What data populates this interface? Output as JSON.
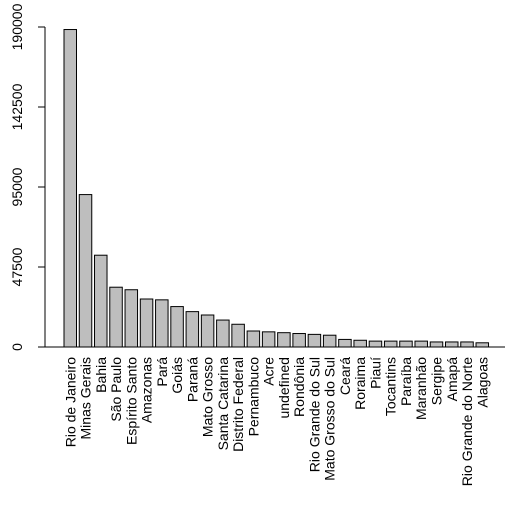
{
  "chart_data": {
    "type": "bar",
    "title": "",
    "xlabel": "",
    "ylabel": "",
    "ylim": [
      0,
      190000
    ],
    "yticks": [
      0,
      47500,
      95000,
      142500,
      190000
    ],
    "ytick_labels": [
      "0",
      "47500",
      "95000",
      "142500",
      "190000"
    ],
    "grid": false,
    "bar_color": "#bebebe",
    "edge_color": "#000000",
    "categories": [
      "Rio de Janeiro",
      "Minas Gerais",
      "Bahia",
      "São Paulo",
      "Espírito Santo",
      "Amazonas",
      "Pará",
      "Goiás",
      "Paraná",
      "Mato Grosso",
      "Santa Catarina",
      "Distrito Federal",
      "Pernambuco",
      "Acre",
      "undefined",
      "Rondônia",
      "Rio Grande do Sul",
      "Mato Grosso do Sul",
      "Ceará",
      "Roraima",
      "Piauí",
      "Tocantins",
      "Paraíba",
      "Maranhão",
      "Sergipe",
      "Amapá",
      "Rio Grande do Norte",
      "Alagoas"
    ],
    "values": [
      188500,
      90500,
      54500,
      35500,
      34000,
      28500,
      28000,
      24000,
      21000,
      19000,
      16000,
      13500,
      9500,
      9000,
      8500,
      8000,
      7500,
      7000,
      4500,
      4000,
      3500,
      3500,
      3500,
      3500,
      3000,
      3000,
      3000,
      2500
    ]
  }
}
